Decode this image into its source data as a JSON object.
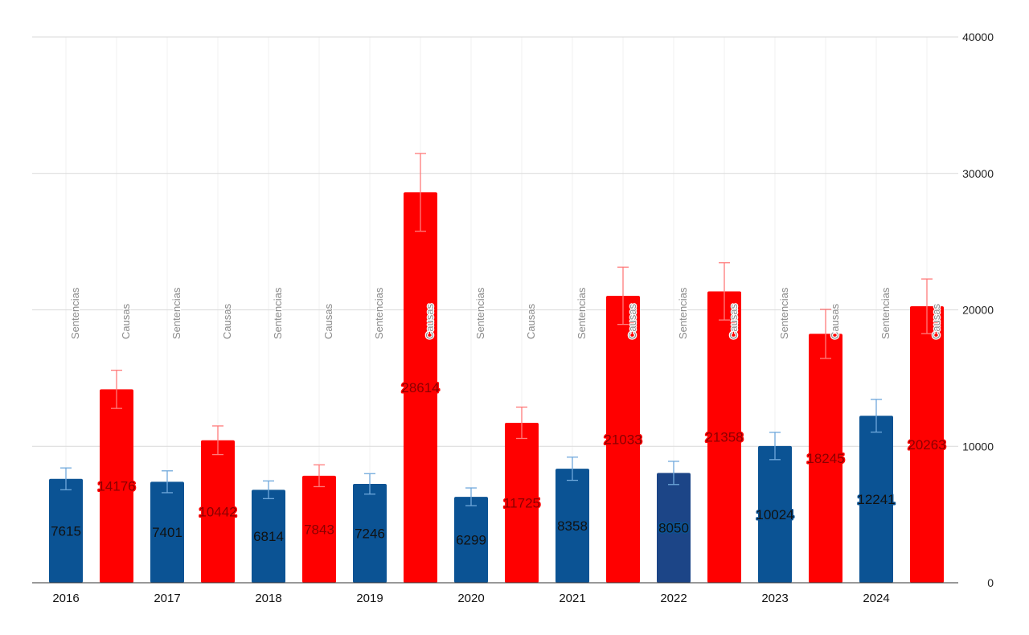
{
  "chart_data": {
    "type": "bar",
    "title": "",
    "xlabel": "",
    "ylabel": "",
    "categories": [
      "2016",
      "2017",
      "2018",
      "2019",
      "2020",
      "2021",
      "2022",
      "2023",
      "2024"
    ],
    "series": [
      {
        "name": "Sentencias",
        "color": "#0b5394",
        "values": [
          7615,
          7401,
          6814,
          7246,
          6299,
          8358,
          8050,
          10024,
          12241
        ],
        "errors": [
          800,
          800,
          650,
          750,
          650,
          850,
          850,
          1000,
          1200
        ]
      },
      {
        "name": "Causas",
        "color": "#ff0000",
        "values": [
          14176,
          10442,
          7843,
          28614,
          11725,
          21033,
          21358,
          18245,
          20263
        ],
        "errors": [
          1400,
          1050,
          800,
          2850,
          1150,
          2100,
          2100,
          1800,
          2000
        ]
      }
    ],
    "highlight": {
      "series": 0,
      "index": 6,
      "color": "#1c4587"
    },
    "error_bar_colors": [
      "#6fa8dc",
      "#ff7b7b"
    ],
    "ylim": [
      0,
      40000
    ],
    "yticks": [
      0,
      10000,
      20000,
      30000,
      40000
    ],
    "y_axis_position": "right",
    "grid": true,
    "legend": "none"
  }
}
